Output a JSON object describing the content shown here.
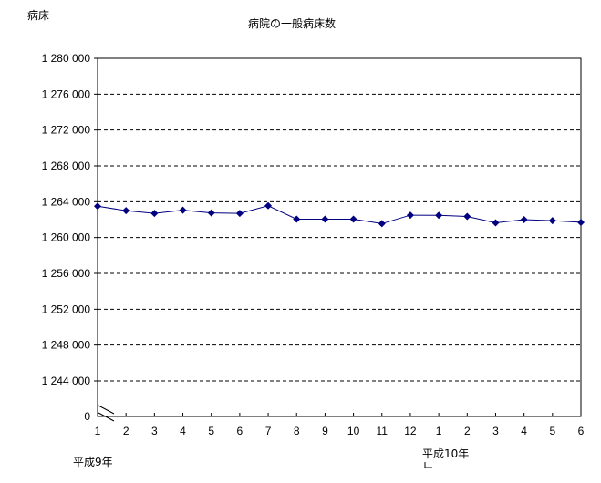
{
  "chart_data": {
    "type": "line",
    "title": "病院の一般病床数",
    "ylabel": "病床",
    "xlabel": "",
    "year_labels": [
      "平成9年",
      "平成10年"
    ],
    "categories": [
      "1",
      "2",
      "3",
      "4",
      "5",
      "6",
      "7",
      "8",
      "9",
      "10",
      "11",
      "12",
      "1",
      "2",
      "3",
      "4",
      "5",
      "6"
    ],
    "values": [
      1263500,
      1263000,
      1262700,
      1263050,
      1262750,
      1262700,
      1263550,
      1262050,
      1262050,
      1262050,
      1261550,
      1262500,
      1262480,
      1262350,
      1261650,
      1262000,
      1261880,
      1261700
    ],
    "ylim": [
      1244000,
      1280000
    ],
    "axis_break": true,
    "y_ticks": [
      "1 280 000",
      "1 276 000",
      "1 272 000",
      "1 268 000",
      "1 264 000",
      "1 260 000",
      "1 256 000",
      "1 252 000",
      "1 248 000",
      "1 244 000"
    ],
    "y_tick_values": [
      1280000,
      1276000,
      1272000,
      1268000,
      1264000,
      1260000,
      1256000,
      1252000,
      1248000,
      1244000
    ],
    "y_bottom_label": "0",
    "grid": "horizontal dashed",
    "line_color": "#000080",
    "marker": "diamond"
  }
}
